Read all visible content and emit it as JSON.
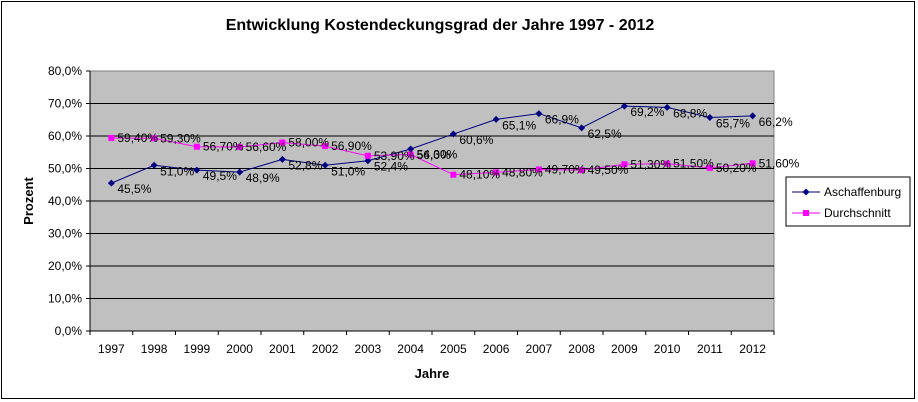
{
  "chart_data": {
    "type": "line",
    "title": "Entwicklung Kostendeckungsgrad der Jahre 1997 - 2012",
    "xlabel": "Jahre",
    "ylabel": "Prozent",
    "categories": [
      "1997",
      "1998",
      "1999",
      "2000",
      "2001",
      "2002",
      "2003",
      "2004",
      "2005",
      "2006",
      "2007",
      "2008",
      "2009",
      "2010",
      "2011",
      "2012"
    ],
    "ylim": [
      0,
      80
    ],
    "yticks": [
      "0,0%",
      "10,0%",
      "20,0%",
      "30,0%",
      "40,0%",
      "50,0%",
      "60,0%",
      "70,0%",
      "80,0%"
    ],
    "grid": true,
    "legend_position": "right",
    "plot_background": "#c0c0c0",
    "series": [
      {
        "name": "Aschaffenburg",
        "color": "#000080",
        "marker": "diamond",
        "values": [
          45.5,
          51.0,
          49.5,
          48.9,
          52.8,
          51.0,
          52.4,
          56.0,
          60.6,
          65.1,
          66.9,
          62.5,
          69.2,
          68.8,
          65.7,
          66.2
        ],
        "labels": [
          "45,5%",
          "51,0%",
          "49,5%",
          "48,9%",
          "52,8%",
          "51,0%",
          "52,4%",
          "56,0%",
          "60,6%",
          "65,1%",
          "66,9%",
          "62,5%",
          "69,2%",
          "68,8%",
          "65,7%",
          "66,2%"
        ]
      },
      {
        "name": "Durchschnitt",
        "color": "#ff00ff",
        "marker": "square",
        "values": [
          59.4,
          59.3,
          56.7,
          56.6,
          58.0,
          56.9,
          53.9,
          54.3,
          48.1,
          48.8,
          49.7,
          49.5,
          51.3,
          51.5,
          50.2,
          51.6
        ],
        "labels": [
          "59,40%",
          "59,30%",
          "56,70%",
          "56,60%",
          "58,00%",
          "56,90%",
          "53,90%",
          "54,30%",
          "48,10%",
          "48,80%",
          "49,70%",
          "49,50%",
          "51,30%",
          "51,50%",
          "50,20%",
          "51,60%"
        ]
      }
    ]
  }
}
